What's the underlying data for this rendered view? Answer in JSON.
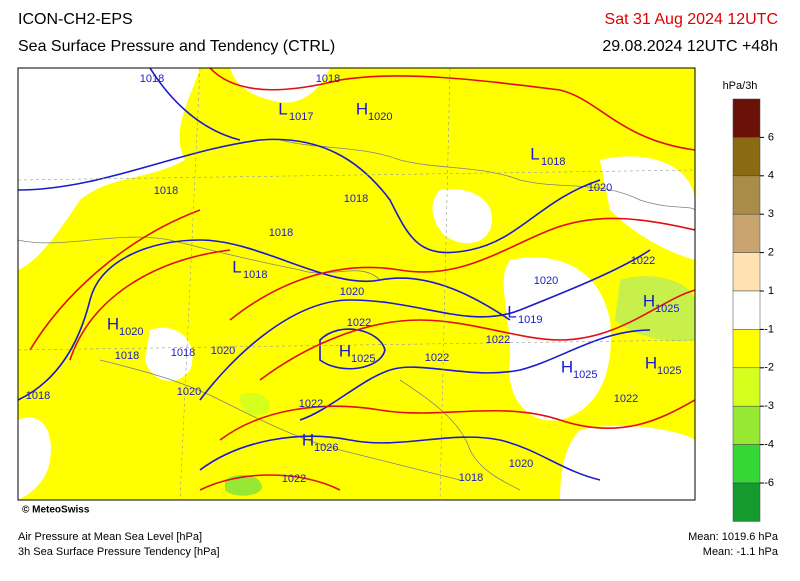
{
  "header": {
    "model": "ICON-CH2-EPS",
    "title": "Sea Surface Pressure and Tendency (CTRL)",
    "valid_time": "Sat 31 Aug 2024 12UTC",
    "run": "29.08.2024 12UTC +48h"
  },
  "colorbar": {
    "unit": "hPa/3h",
    "ticks": [
      6,
      4,
      3,
      2,
      1,
      -1,
      -2,
      -3,
      -4,
      -6
    ],
    "colors": [
      "#6b1208",
      "#8b6a14",
      "#a88c48",
      "#c9a46e",
      "#ffe2b0",
      "#ffffff",
      "#ffff00",
      "#d6ff1e",
      "#96e832",
      "#34d836",
      "#159a2e"
    ]
  },
  "map": {
    "isobar_labels": [
      1018,
      1018,
      1020,
      1018,
      1018,
      1018,
      1020,
      1022,
      1020,
      1022,
      1022,
      1018,
      1018,
      1020,
      1022,
      1018,
      1020,
      1022,
      1022,
      1020,
      1022,
      1018
    ],
    "pressure_centers": [
      {
        "symbol": "L",
        "value": 1017
      },
      {
        "symbol": "H",
        "value": 1020
      },
      {
        "symbol": "L",
        "value": 1018
      },
      {
        "symbol": "L",
        "value": 1018
      },
      {
        "symbol": "L",
        "value": 1019
      },
      {
        "symbol": "H",
        "value": 1025
      },
      {
        "symbol": "H",
        "value": 1020
      },
      {
        "symbol": "H",
        "value": 1025
      },
      {
        "symbol": "H",
        "value": 1025
      },
      {
        "symbol": "H",
        "value": 1025
      },
      {
        "symbol": "H",
        "value": 1026
      }
    ],
    "credit": "© MeteoSwiss"
  },
  "footer": {
    "line1": "Air Pressure at Mean Sea Level [hPa]",
    "line2": "3h Sea Surface Pressure Tendency [hPa]",
    "mean_pressure": "Mean: 1019.6 hPa",
    "mean_tendency": "Mean:  -1.1 hPa"
  }
}
